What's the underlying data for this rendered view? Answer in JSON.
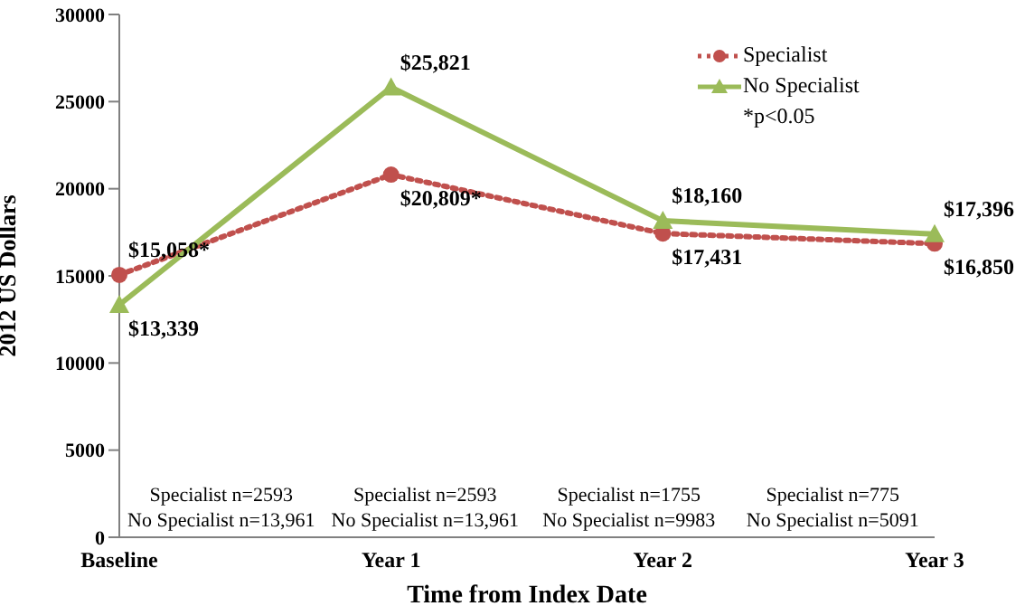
{
  "chart_data": {
    "type": "line",
    "xlabel": "Time from Index Date",
    "ylabel": "2012 US Dollars",
    "categories": [
      "Baseline",
      "Year 1",
      "Year 2",
      "Year 3"
    ],
    "ylim": [
      0,
      30000
    ],
    "yticks": [
      0,
      5000,
      10000,
      15000,
      20000,
      25000,
      30000
    ],
    "grid": false,
    "legend": "top right",
    "series": [
      {
        "name": "Specialist",
        "color": "#c0504d",
        "values": [
          15058,
          20809,
          17431,
          16850
        ],
        "value_labels": [
          "$15,058*",
          "$20,809*",
          "$17,431",
          "$16,850"
        ],
        "marker": "circle",
        "line_style": "dotted"
      },
      {
        "name": "No Specialist",
        "color": "#9bbb59",
        "values": [
          13339,
          25821,
          18160,
          17396
        ],
        "value_labels": [
          "$13,339",
          "$25,821",
          "$18,160",
          "$17,396"
        ],
        "marker": "triangle",
        "line_style": "solid"
      }
    ],
    "annotations": [
      "*p<0.05",
      "Specialist n=2593",
      "No Specialist n=13,961",
      "Specialist n=2593",
      "No Specialist n=13,961",
      "Specialist n=1755",
      "No Specialist n=9983",
      "Specialist n=775",
      "No Specialist n=5091"
    ]
  }
}
